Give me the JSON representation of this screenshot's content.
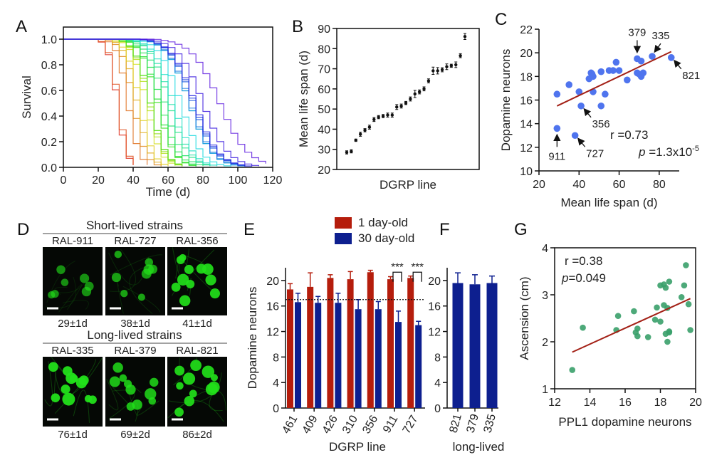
{
  "panel_labels": [
    "A",
    "B",
    "C",
    "D",
    "E",
    "F",
    "G"
  ],
  "chart_data": [
    {
      "id": "A",
      "type": "line",
      "title": "",
      "xlabel": "Time  (d)",
      "ylabel": "Survival",
      "xlim": [
        0,
        120
      ],
      "ylim": [
        0,
        1.0
      ],
      "xticks": [
        "0",
        "20",
        "40",
        "60",
        "80",
        "100",
        "120"
      ],
      "yticks": [
        "0.0",
        "0.2",
        "0.4",
        "0.6",
        "0.8",
        "1.0"
      ],
      "step_curves": true,
      "series_color_range": [
        "#e0452c",
        "#7b6fe0"
      ],
      "grid": false
    },
    {
      "id": "B",
      "type": "scatter",
      "xlabel": "DGRP line",
      "ylabel": "Mean life span (d)",
      "ylim": [
        20,
        90
      ],
      "yticks": [
        "20",
        "30",
        "40",
        "50",
        "60",
        "70",
        "80",
        "90"
      ],
      "values": [
        28.5,
        29,
        34.5,
        37.5,
        39.5,
        41,
        44.8,
        46,
        46.5,
        47,
        47,
        51,
        51.5,
        53,
        55,
        57.5,
        58.5,
        60,
        64,
        69,
        69,
        69.5,
        71,
        71.5,
        72,
        76.5,
        86
      ],
      "errors": [
        0.8,
        0.8,
        0.6,
        1,
        0.8,
        1,
        1,
        0.8,
        0.8,
        1,
        1,
        1.2,
        1,
        0.8,
        1,
        1.8,
        1,
        1,
        1,
        1.8,
        1.6,
        1,
        1.4,
        0.8,
        1.4,
        1,
        1.5
      ],
      "color": "#111111",
      "grid": false
    },
    {
      "id": "C",
      "type": "scatter",
      "xlabel": "Mean life span (d)",
      "ylabel": "Dopamine neurons",
      "xlim": [
        20,
        90
      ],
      "ylim": [
        10,
        22
      ],
      "xticks": [
        "20",
        "40",
        "60",
        "80"
      ],
      "yticks": [
        "10",
        "12",
        "14",
        "16",
        "18",
        "20",
        "22"
      ],
      "points": [
        [
          29,
          16.5
        ],
        [
          29,
          13.6
        ],
        [
          35,
          17.3
        ],
        [
          38,
          13
        ],
        [
          40,
          16.7
        ],
        [
          41,
          15.5
        ],
        [
          45,
          17.8
        ],
        [
          46,
          18.3
        ],
        [
          46.5,
          18.2
        ],
        [
          47,
          18
        ],
        [
          47,
          16.7
        ],
        [
          51,
          18.4
        ],
        [
          51,
          15.5
        ],
        [
          53,
          16.5
        ],
        [
          55,
          18.5
        ],
        [
          57,
          18.5
        ],
        [
          58.5,
          19.2
        ],
        [
          60,
          18.5
        ],
        [
          64,
          17.7
        ],
        [
          69,
          19.5
        ],
        [
          69,
          18.3
        ],
        [
          70,
          18.2
        ],
        [
          71,
          18
        ],
        [
          71,
          19.3
        ],
        [
          72,
          18.3
        ],
        [
          76.5,
          19.7
        ],
        [
          86,
          19.6
        ]
      ],
      "fit_line": [
        [
          29,
          15.5
        ],
        [
          86,
          20.1
        ]
      ],
      "annotations": [
        {
          "text": "379",
          "at": [
            69,
            19.5
          ],
          "dir": "top"
        },
        {
          "text": "335",
          "at": [
            76.5,
            19.7
          ],
          "dir": "topright"
        },
        {
          "text": "821",
          "at": [
            86,
            19.6
          ],
          "dir": "bottomright"
        },
        {
          "text": "356",
          "at": [
            41,
            15.5
          ],
          "dir": "bottomright"
        },
        {
          "text": "911",
          "at": [
            29,
            13.6
          ],
          "dir": "bottom"
        },
        {
          "text": "727",
          "at": [
            38,
            13
          ],
          "dir": "bottomright"
        }
      ],
      "stats": {
        "r": "r =0.73",
        "p_prefix": "p",
        "p_value": " =1.3x10",
        "p_exp": "-5"
      },
      "point_color": "#4f74ee",
      "line_color": "#a32016",
      "grid": false
    },
    {
      "id": "E",
      "type": "bar",
      "xlabel": "DGRP line",
      "ylabel": "Dopamine neurons",
      "ylim": [
        0,
        22
      ],
      "yticks": [
        "0",
        "4",
        "8",
        "12",
        "16",
        "20"
      ],
      "categories": [
        "461",
        "409",
        "426",
        "310",
        "356",
        "911",
        "727"
      ],
      "series": [
        {
          "name": "1 day-old",
          "color": "#b51d0c",
          "values": [
            18.6,
            19,
            20.4,
            20.2,
            21.3,
            20.2,
            20.4
          ],
          "errors": [
            0.9,
            2.2,
            0.5,
            1.2,
            0.3,
            0.4,
            0.3
          ]
        },
        {
          "name": "30 day-old",
          "color": "#0d1f8f",
          "values": [
            16.6,
            16.5,
            16.5,
            15.5,
            15.5,
            13.5,
            13
          ],
          "errors": [
            1.4,
            1,
            1.5,
            1.5,
            1.2,
            1.7,
            0.6
          ]
        }
      ],
      "reference_line": 17,
      "significance": [
        {
          "category": "911",
          "text": "***"
        },
        {
          "category": "727",
          "text": "***"
        }
      ],
      "legend": "top"
    },
    {
      "id": "F",
      "type": "bar",
      "xlabel": "long-lived",
      "ylim": [
        0,
        22
      ],
      "yticks": [
        "0",
        "4",
        "8",
        "12",
        "16",
        "20"
      ],
      "categories": [
        "821",
        "379",
        "335"
      ],
      "values": [
        19.6,
        19.4,
        19.6
      ],
      "errors": [
        1.6,
        1.5,
        1.1
      ],
      "color": "#0d1f8f"
    },
    {
      "id": "G",
      "type": "scatter",
      "xlabel": "PPL1 dopamine neurons",
      "ylabel": "Ascension (cm)",
      "xlim": [
        12,
        20
      ],
      "ylim": [
        1,
        4
      ],
      "xticks": [
        "12",
        "14",
        "16",
        "18",
        "20"
      ],
      "yticks": [
        "1",
        "2",
        "3",
        "4"
      ],
      "points": [
        [
          13,
          1.4
        ],
        [
          13.6,
          2.3
        ],
        [
          15.5,
          2.25
        ],
        [
          15.6,
          2.55
        ],
        [
          16.5,
          2.65
        ],
        [
          16.6,
          2.2
        ],
        [
          16.7,
          2.28
        ],
        [
          16.7,
          2.12
        ],
        [
          17.3,
          2.1
        ],
        [
          17.7,
          2.47
        ],
        [
          17.8,
          2.73
        ],
        [
          18,
          2.43
        ],
        [
          18,
          3.2
        ],
        [
          18.2,
          2.78
        ],
        [
          18.2,
          3.22
        ],
        [
          18.3,
          3.15
        ],
        [
          18.3,
          2.17
        ],
        [
          18.4,
          2.72
        ],
        [
          18.4,
          2.0
        ],
        [
          18.5,
          3.28
        ],
        [
          18.5,
          2.2
        ],
        [
          18.5,
          2.22
        ],
        [
          19.2,
          2.95
        ],
        [
          19.35,
          3.2
        ],
        [
          19.45,
          3.63
        ],
        [
          19.6,
          2.8
        ],
        [
          19.7,
          2.25
        ]
      ],
      "fit_line": [
        [
          13,
          1.78
        ],
        [
          19.7,
          2.92
        ]
      ],
      "stats": {
        "r": "r =0.38",
        "p_prefix": "p",
        "p_value": "=0.049"
      },
      "point_color": "#3aa06a",
      "line_color": "#a32016",
      "grid": false
    }
  ],
  "micrographs": {
    "short_title": "Short-lived strains",
    "long_title": "Long-lived strains",
    "short": [
      {
        "strain": "RAL-911",
        "lifespan": "29±1d",
        "intensity": 0.45
      },
      {
        "strain": "RAL-727",
        "lifespan": "38±1d",
        "intensity": 0.6
      },
      {
        "strain": "RAL-356",
        "lifespan": "41±1d",
        "intensity": 0.95
      }
    ],
    "long": [
      {
        "strain": "RAL-335",
        "lifespan": "76±1d",
        "intensity": 1.0
      },
      {
        "strain": "RAL-379",
        "lifespan": "69±2d",
        "intensity": 0.8
      },
      {
        "strain": "RAL-821",
        "lifespan": "86±2d",
        "intensity": 0.95
      }
    ],
    "color": "#22e01a"
  }
}
